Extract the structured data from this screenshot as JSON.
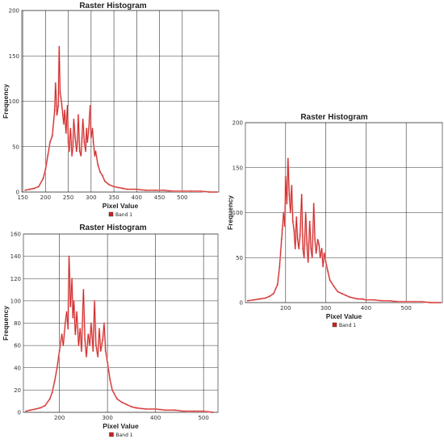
{
  "chart_data": [
    {
      "type": "line",
      "title": "Raster Histogram",
      "xlabel": "Pixel Value",
      "ylabel": "Frequency",
      "xlim": [
        148,
        580
      ],
      "ylim": [
        0,
        200
      ],
      "xticks": [
        150,
        200,
        250,
        300,
        350,
        400,
        450,
        500
      ],
      "yticks": [
        0,
        50,
        100,
        150,
        200
      ],
      "grid": true,
      "legend": "bottom",
      "line_color": "#cc2222",
      "series": [
        {
          "name": "Band 1",
          "x": [
            155,
            165,
            175,
            185,
            195,
            200,
            205,
            210,
            215,
            220,
            222,
            225,
            228,
            230,
            232,
            235,
            238,
            240,
            242,
            245,
            248,
            250,
            252,
            255,
            258,
            260,
            262,
            265,
            268,
            270,
            272,
            275,
            278,
            280,
            282,
            285,
            288,
            290,
            292,
            295,
            298,
            300,
            303,
            305,
            308,
            310,
            315,
            320,
            325,
            330,
            340,
            350,
            360,
            370,
            380,
            400,
            420,
            440,
            460,
            480,
            500,
            520,
            540,
            560,
            575
          ],
          "y": [
            2,
            3,
            4,
            6,
            15,
            25,
            40,
            55,
            62,
            90,
            120,
            85,
            95,
            160,
            110,
            100,
            85,
            75,
            90,
            65,
            95,
            55,
            45,
            70,
            40,
            50,
            80,
            60,
            45,
            55,
            85,
            45,
            40,
            60,
            80,
            55,
            45,
            70,
            55,
            70,
            95,
            60,
            70,
            55,
            40,
            45,
            30,
            22,
            18,
            12,
            8,
            6,
            5,
            4,
            3,
            3,
            2,
            2,
            2,
            1,
            1,
            1,
            1,
            0,
            0
          ]
        }
      ]
    },
    {
      "type": "line",
      "title": "Raster Histogram",
      "xlabel": "Pixel Value",
      "ylabel": "Frequency",
      "xlim": [
        125,
        530
      ],
      "ylim": [
        0,
        160
      ],
      "xticks": [
        200,
        300,
        400,
        500
      ],
      "yticks": [
        0,
        20,
        40,
        60,
        80,
        100,
        120,
        140,
        160
      ],
      "grid": true,
      "legend": "bottom",
      "line_color": "#cc2222",
      "series": [
        {
          "name": "Band 1",
          "x": [
            130,
            140,
            150,
            160,
            170,
            180,
            185,
            190,
            195,
            200,
            205,
            208,
            212,
            215,
            218,
            220,
            223,
            226,
            228,
            230,
            233,
            236,
            240,
            243,
            246,
            250,
            253,
            256,
            260,
            263,
            266,
            270,
            273,
            276,
            280,
            283,
            286,
            290,
            293,
            296,
            300,
            305,
            310,
            320,
            330,
            340,
            350,
            360,
            380,
            400,
            420,
            440,
            460,
            480,
            500,
            520
          ],
          "y": [
            1,
            2,
            3,
            4,
            6,
            12,
            18,
            28,
            40,
            55,
            70,
            60,
            80,
            90,
            75,
            140,
            95,
            120,
            85,
            100,
            70,
            90,
            60,
            75,
            55,
            110,
            65,
            50,
            70,
            60,
            80,
            55,
            100,
            60,
            50,
            75,
            55,
            65,
            80,
            55,
            45,
            30,
            20,
            12,
            9,
            7,
            5,
            4,
            3,
            3,
            2,
            2,
            1,
            1,
            1,
            0
          ]
        }
      ]
    },
    {
      "type": "line",
      "title": "Raster Histogram",
      "xlabel": "Pixel Value",
      "ylabel": "Frequency",
      "xlim": [
        100,
        590
      ],
      "ylim": [
        0,
        200
      ],
      "xticks": [
        200,
        300,
        400,
        500
      ],
      "yticks": [
        0,
        50,
        100,
        150,
        200
      ],
      "grid": true,
      "legend": "bottom",
      "line_color": "#cc2222",
      "series": [
        {
          "name": "Band 1",
          "x": [
            105,
            120,
            135,
            150,
            160,
            170,
            180,
            185,
            190,
            195,
            198,
            200,
            203,
            206,
            209,
            212,
            215,
            218,
            221,
            224,
            227,
            230,
            233,
            236,
            240,
            243,
            246,
            250,
            253,
            256,
            260,
            263,
            266,
            270,
            273,
            276,
            280,
            283,
            286,
            290,
            293,
            296,
            300,
            305,
            310,
            320,
            330,
            340,
            350,
            360,
            370,
            380,
            390,
            400,
            420,
            440,
            460,
            480,
            500,
            520,
            540,
            560,
            585
          ],
          "y": [
            2,
            3,
            4,
            5,
            7,
            10,
            20,
            40,
            70,
            100,
            85,
            140,
            110,
            160,
            120,
            100,
            130,
            90,
            80,
            60,
            95,
            70,
            60,
            75,
            120,
            60,
            50,
            100,
            65,
            45,
            90,
            60,
            50,
            110,
            70,
            55,
            70,
            65,
            50,
            60,
            40,
            55,
            45,
            35,
            25,
            18,
            12,
            10,
            8,
            6,
            5,
            4,
            4,
            3,
            3,
            2,
            2,
            1,
            1,
            1,
            1,
            0,
            0
          ]
        }
      ]
    }
  ]
}
